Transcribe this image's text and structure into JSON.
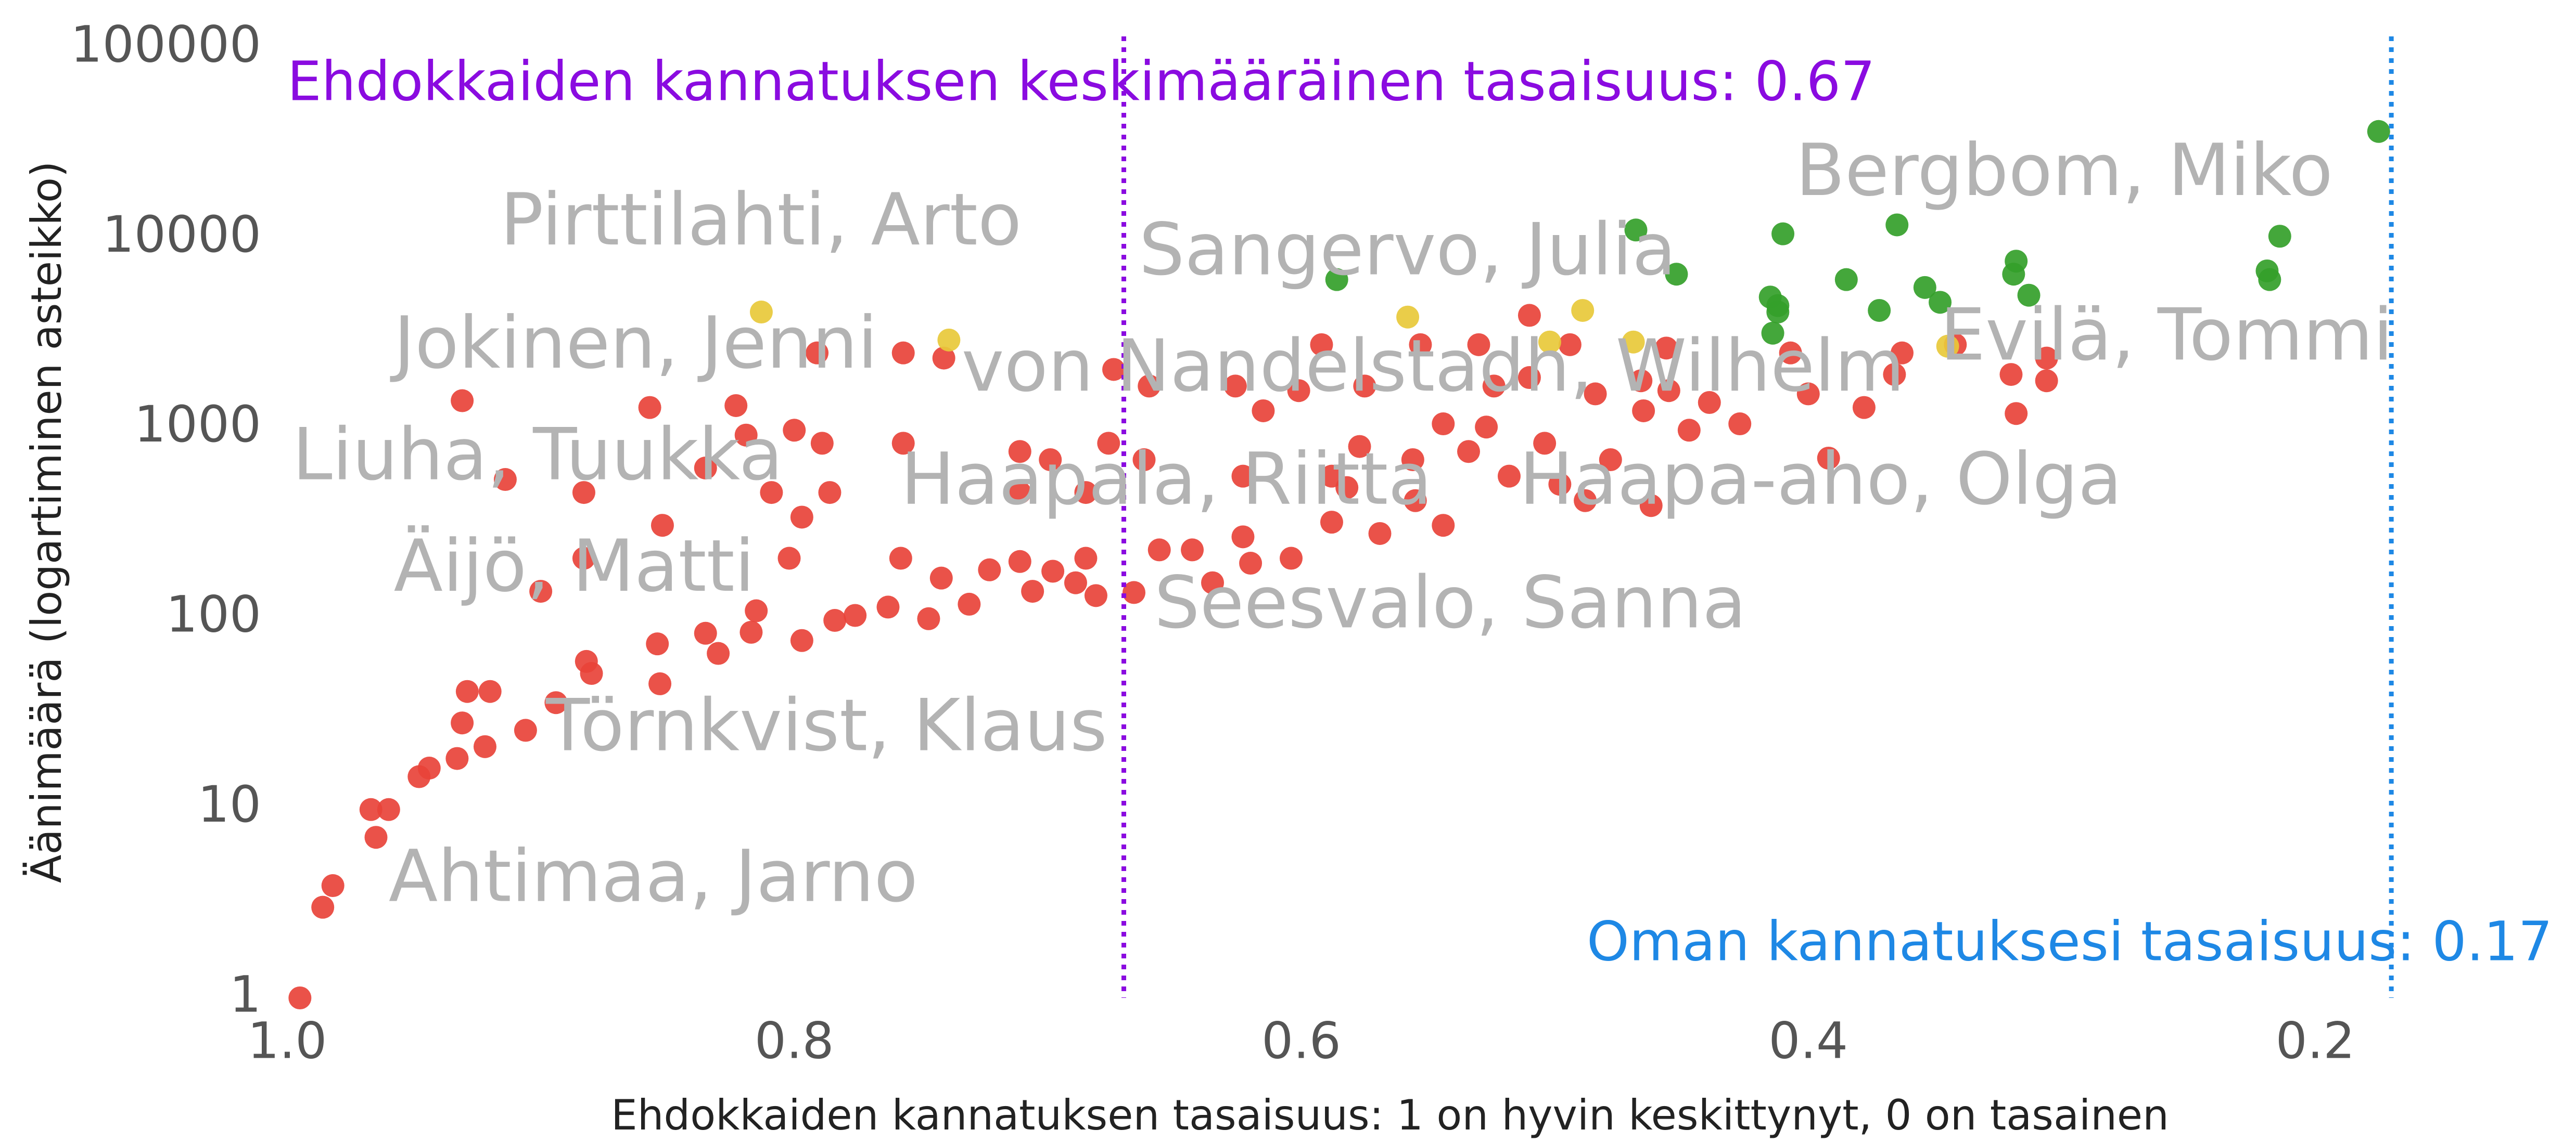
{
  "chart_data": {
    "type": "scatter",
    "xlabel": "Ehdokkaiden kannatuksen tasaisuus: 1 on hyvin keskittynyt, 0 on tasainen",
    "ylabel": "Äänimäärä (logartiminen asteikko)",
    "xlim": [
      1.0,
      0.13
    ],
    "ylim": [
      1,
      100000
    ],
    "log_y": true,
    "xticks": [
      {
        "value": 1,
        "label": "1.0"
      },
      0.8,
      0.6,
      0.4,
      0.2
    ],
    "yticks": [
      1,
      10,
      100,
      1000,
      10000,
      100000
    ],
    "series": [
      {
        "color": "#e8433a",
        "x": [
          0.995,
          0.986,
          0.982,
          0.965,
          0.967,
          0.96,
          0.948,
          0.944,
          0.933,
          0.922,
          0.931,
          0.906,
          0.929,
          0.92,
          0.894,
          0.882,
          0.88,
          0.854,
          0.853,
          0.835,
          0.83,
          0.817,
          0.815,
          0.797,
          0.784,
          0.776,
          0.763,
          0.747,
          0.742,
          0.758,
          0.731,
          0.723,
          0.706,
          0.698,
          0.689,
          0.681,
          0.711,
          0.685,
          0.666,
          0.656,
          0.643,
          0.635,
          0.623,
          0.62,
          0.604,
          0.588,
          0.582,
          0.569,
          0.555,
          0.544,
          0.534,
          0.527,
          0.518,
          0.504,
          0.498,
          0.488,
          0.478,
          0.465,
          0.447,
          0.439,
          0.427,
          0.407,
          0.4,
          0.378,
          0.366,
          0.363,
          0.342,
          0.32,
          0.318,
          0.306,
          0.306,
          0.392,
          0.931,
          0.914,
          0.883,
          0.857,
          0.835,
          0.823,
          0.819,
          0.8,
          0.789,
          0.791,
          0.809,
          0.797,
          0.786,
          0.852,
          0.802,
          0.883,
          0.9,
          0.757,
          0.741,
          0.757,
          0.711,
          0.699,
          0.685,
          0.674,
          0.66,
          0.676,
          0.662,
          0.711,
          0.626,
          0.623,
          0.615,
          0.601,
          0.592,
          0.588,
          0.575,
          0.577,
          0.553,
          0.556,
          0.544,
          0.524,
          0.53,
          0.51,
          0.51,
          0.494,
          0.484,
          0.466,
          0.456,
          0.455,
          0.462
        ],
        "values": [
          1.0,
          3.0,
          3.9,
          7.0,
          9.8,
          9.8,
          14.6,
          16.2,
          18.2,
          21,
          28,
          25.6,
          41,
          41,
          35.8,
          59,
          51,
          73,
          45,
          83,
          65,
          84,
          109,
          76,
          97,
          103,
          114,
          99,
          162,
          206,
          118,
          179,
          138,
          176,
          153,
          131,
          198,
          206,
          136,
          228,
          228,
          153,
          267,
          194,
          206,
          319,
          485,
          278,
          414,
          307,
          751,
          1010,
          557,
          830,
          505,
          414,
          680,
          1230,
          972,
          1360,
          1050,
          2480,
          1510,
          1280,
          1910,
          2480,
          2740,
          1910,
          1190,
          2330,
          1770,
          693,
          1390,
          535,
          457,
          1280,
          615,
          1310,
          916,
          972,
          830,
          2480,
          457,
          339,
          457,
          307,
          206,
          206,
          138,
          2480,
          2330,
          830,
          751,
          680,
          457,
          2030,
          1660,
          830,
          680,
          457,
          1660,
          557,
          1230,
          1570,
          2740,
          557,
          1660,
          798,
          2740,
          680,
          1050,
          1660,
          2740,
          1840,
          3910,
          2740,
          1510,
          1770,
          2630,
          1570,
          390
        ]
      },
      {
        "color": "#e8c93a",
        "x": [
          0.813,
          0.739,
          0.558,
          0.489,
          0.502,
          0.469,
          0.345
        ],
        "values": [
          4070,
          2900,
          3830,
          4150,
          2830,
          2830,
          2690
        ]
      },
      {
        "color": "#34a02a",
        "x": [
          0.175,
          0.468,
          0.41,
          0.365,
          0.214,
          0.586,
          0.452,
          0.318,
          0.319,
          0.219,
          0.218,
          0.385,
          0.354,
          0.348,
          0.313,
          0.415,
          0.412,
          0.412,
          0.372,
          0.414
        ],
        "values": [
          36300,
          11000,
          10500,
          11700,
          10200,
          6030,
          6440,
          7540,
          6440,
          6700,
          6030,
          6030,
          5480,
          4580,
          4990,
          4880,
          4400,
          4070,
          4150,
          3150
        ]
      }
    ],
    "reference_lines": [
      {
        "value": 0.67,
        "label": "Ehdokkaiden kannatuksen keskimääräinen tasaisuus: 0.67",
        "color": "#8a0be0"
      },
      {
        "value": 0.17,
        "label": "Oman kannatuksesi tasaisuus: 0.17",
        "color": "#1e88e5"
      }
    ],
    "annotations": [
      {
        "text": "Pirttilahti, Arto",
        "x": 0.916,
        "y": 11700
      },
      {
        "text": "Jokinen, Jenni",
        "x": 0.958,
        "y": 2630
      },
      {
        "text": "Liuha, Tuukka",
        "x": 0.998,
        "y": 680
      },
      {
        "text": "Äijö, Matti",
        "x": 0.958,
        "y": 176
      },
      {
        "text": "Törnkvist, Klaus",
        "x": 0.898,
        "y": 25.5
      },
      {
        "text": "Ahtimaa, Jarno",
        "x": 0.96,
        "y": 4.1
      },
      {
        "text": "Sangervo, Julia",
        "x": 0.664,
        "y": 8150
      },
      {
        "text": "von Nandelstadh, Wilhelm",
        "x": 0.734,
        "y": 1990
      },
      {
        "text": "Haapala, Riitta",
        "x": 0.758,
        "y": 505
      },
      {
        "text": "Seesvalo, Sanna",
        "x": 0.658,
        "y": 113
      },
      {
        "text": "Haapa-aho, Olga",
        "x": 0.514,
        "y": 505
      },
      {
        "text": "Bergbom, Miko",
        "x": 0.405,
        "y": 21300
      },
      {
        "text": "Evilä, Tommi",
        "x": 0.348,
        "y": 2900
      }
    ]
  }
}
